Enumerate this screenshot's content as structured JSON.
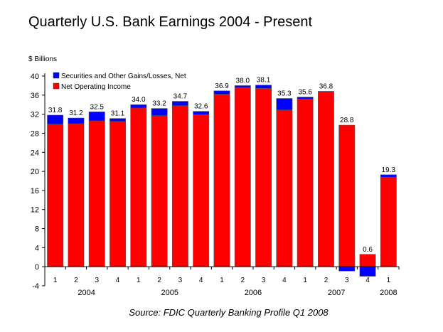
{
  "chart_data": {
    "type": "bar",
    "stacked": true,
    "title": "Quarterly U.S. Bank Earnings 2004 - Present",
    "ylabel": "$ Billions",
    "ylim": [
      -4,
      40
    ],
    "yticks": [
      -4,
      0,
      4,
      8,
      12,
      16,
      20,
      24,
      28,
      32,
      36,
      40
    ],
    "grid": false,
    "legend": "top-left",
    "categories": [
      "1",
      "2",
      "3",
      "4",
      "1",
      "2",
      "3",
      "4",
      "1",
      "2",
      "3",
      "4",
      "1",
      "2",
      "3",
      "4",
      "1"
    ],
    "years": [
      {
        "label": "2004",
        "start": 0,
        "end": 3
      },
      {
        "label": "2005",
        "start": 4,
        "end": 7
      },
      {
        "label": "2006",
        "start": 8,
        "end": 11
      },
      {
        "label": "2007",
        "start": 12,
        "end": 15
      },
      {
        "label": "2008",
        "start": 16,
        "end": 16
      }
    ],
    "series": [
      {
        "name": "Securities and Other Gains/Losses, Net",
        "color": "#0000ff",
        "values": [
          1.9,
          1.2,
          1.9,
          0.6,
          0.7,
          1.5,
          0.9,
          0.7,
          0.7,
          0.4,
          0.7,
          2.4,
          0.4,
          0.1,
          -0.9,
          -2.0,
          0.5
        ]
      },
      {
        "name": "Net Operating Income",
        "color": "#ff0000",
        "values": [
          29.9,
          30.0,
          30.6,
          30.5,
          33.3,
          31.7,
          33.8,
          31.9,
          36.2,
          37.6,
          37.4,
          32.9,
          35.2,
          36.7,
          29.7,
          2.6,
          18.8
        ]
      }
    ],
    "data_labels": [
      "31.8",
      "31.2",
      "32.5",
      "31.1",
      "34.0",
      "33.2",
      "34.7",
      "32.6",
      "36.9",
      "38.0",
      "38.1",
      "35.3",
      "35.6",
      "36.8",
      "28.8",
      "0.6",
      "19.3"
    ],
    "source": "Source:  FDIC Quarterly Banking Profile Q1 2008"
  }
}
